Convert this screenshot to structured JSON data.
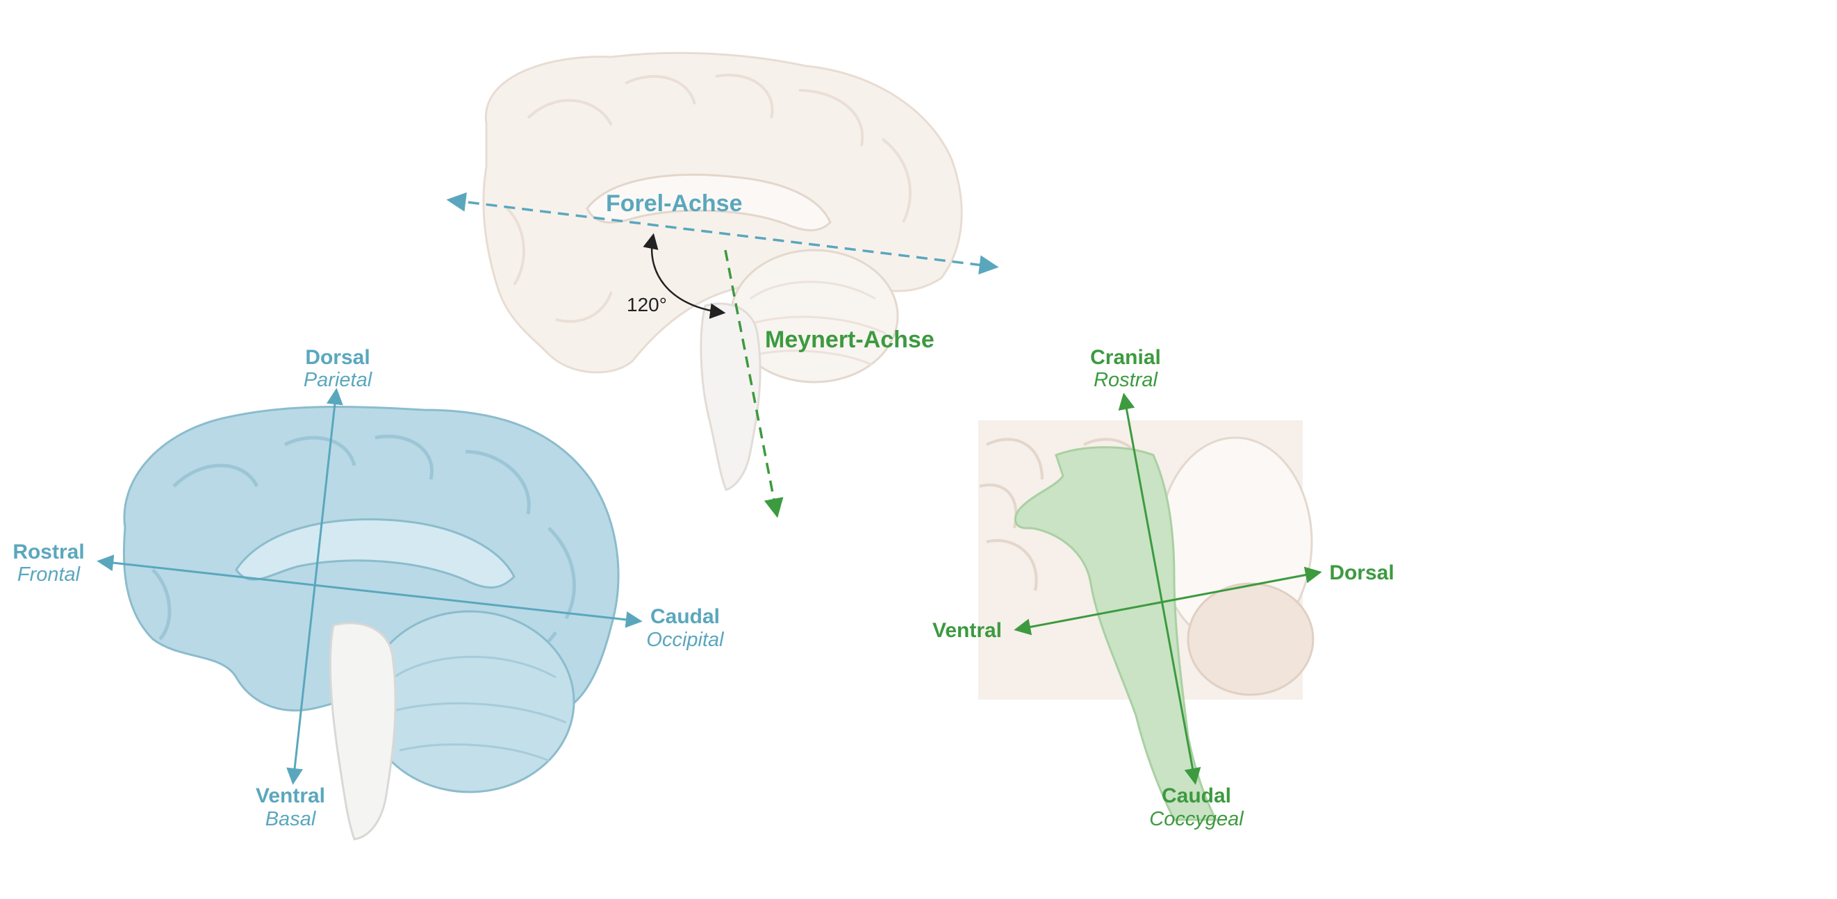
{
  "colors": {
    "blue": "#5aa7bd",
    "blue_fill": "#b9d9e6",
    "blue_stroke": "#8bbccc",
    "green": "#3c9a3f",
    "green_fill": "#c9e3c4",
    "pale_fill": "#f6efea",
    "pale_stroke": "#e6d9cf",
    "dark": "#222222"
  },
  "top_brain": {
    "forel_label": "Forel-Achse",
    "meynert_label": "Meynert-Achse",
    "angle_label": "120°"
  },
  "left_brain": {
    "dorsal": "Dorsal",
    "dorsal_sub": "Parietal",
    "rostral": "Rostral",
    "rostral_sub": "Frontal",
    "caudal": "Caudal",
    "caudal_sub": "Occipital",
    "ventral": "Ventral",
    "ventral_sub": "Basal"
  },
  "right_brain": {
    "cranial": "Cranial",
    "cranial_sub": "Rostral",
    "dorsal": "Dorsal",
    "ventral": "Ventral",
    "caudal": "Caudal",
    "caudal_sub": "Coccygeal"
  }
}
